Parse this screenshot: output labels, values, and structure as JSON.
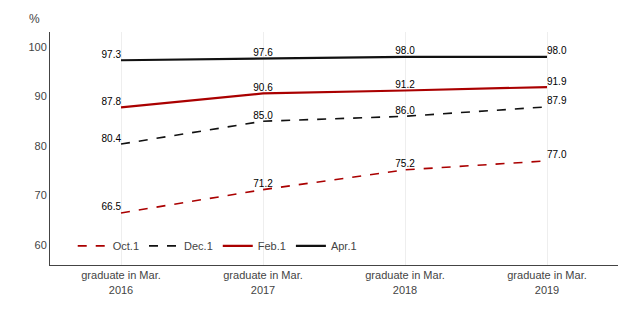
{
  "chart_data": {
    "type": "line",
    "ylabel": "%",
    "categories": [
      "graduate in Mar.\n2016",
      "graduate in Mar.\n2017",
      "graduate in Mar.\n2018",
      "graduate in Mar.\n2019"
    ],
    "series": [
      {
        "name": "Apr.1",
        "color": "#111111",
        "line_style": "solid",
        "values": [
          97.3,
          97.6,
          98.0,
          98.0
        ],
        "value_labels": [
          "97.3",
          "97.6",
          "98.0",
          "98.0"
        ]
      },
      {
        "name": "Feb.1",
        "color": "#aa0000",
        "line_style": "solid",
        "values": [
          87.8,
          90.6,
          91.2,
          91.9
        ]
      },
      {
        "name": "Dec.1",
        "color": "#111111",
        "line_style": "dashed",
        "values": [
          80.4,
          85.0,
          86.0,
          87.9
        ],
        "value_labels": [
          "80.4",
          "85.0",
          "86.0",
          "87.9"
        ]
      },
      {
        "name": "Oct.1",
        "color": "#aa0000",
        "line_style": "dashed",
        "values": [
          66.5,
          71.2,
          75.2,
          77.0
        ],
        "value_labels": [
          "66.5",
          "71.2",
          "75.2",
          "77.0"
        ]
      }
    ],
    "ylim": [
      56,
      103
    ],
    "yticks": [
      60,
      70,
      80,
      90,
      100
    ],
    "grid": "x",
    "legend": "lower left",
    "data_labels": true
  }
}
